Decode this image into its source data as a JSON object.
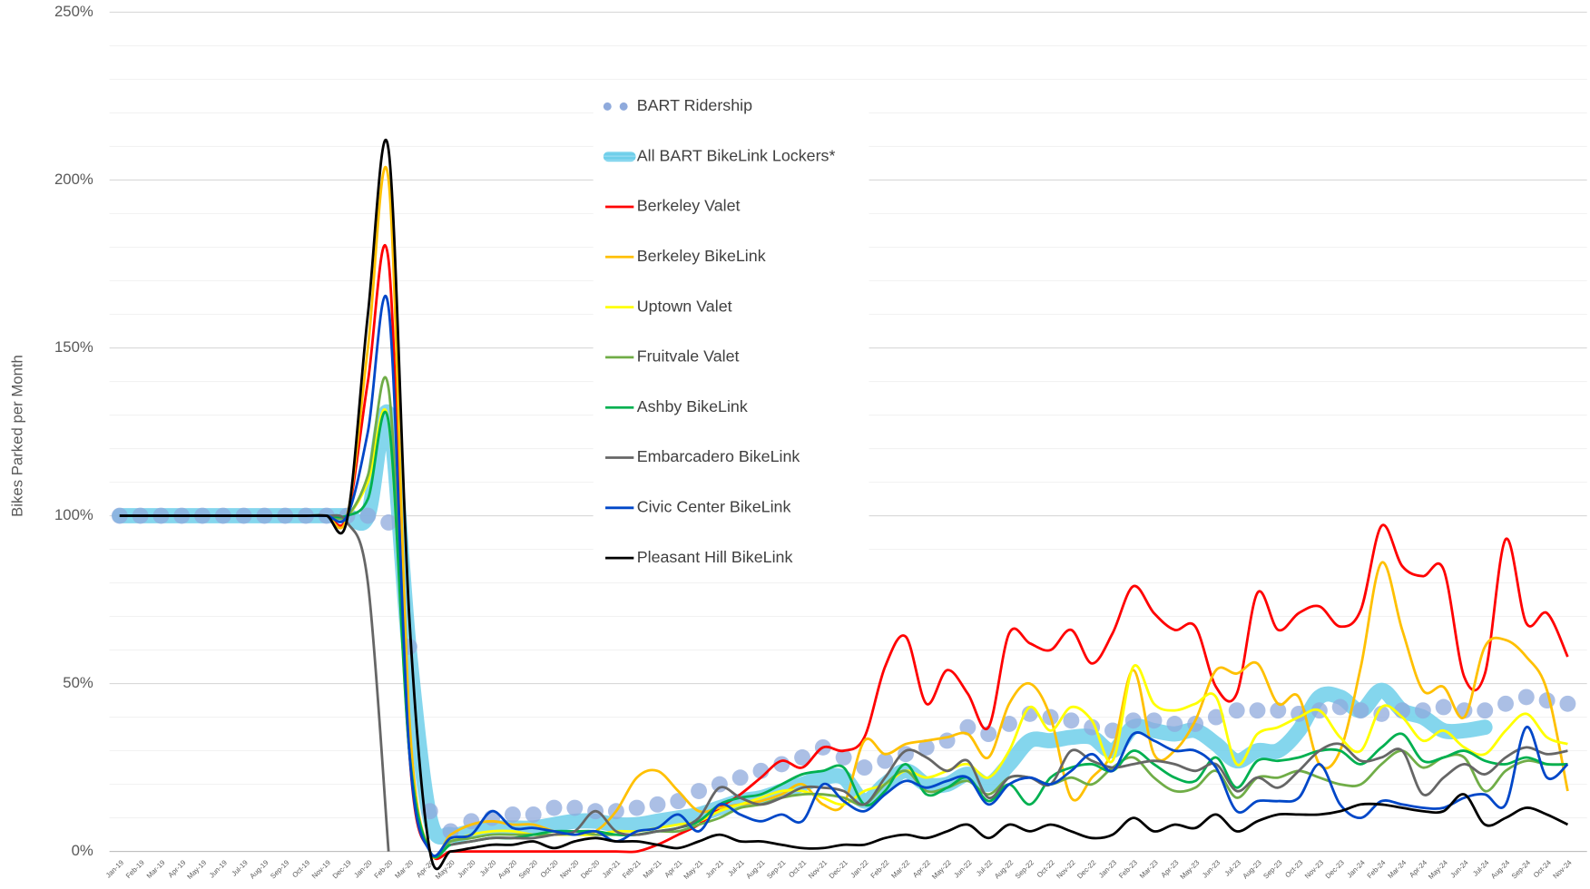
{
  "chart_data": {
    "type": "line",
    "y_axis_label": "Bikes Parked per Month",
    "categories": [
      "Jan-19",
      "Feb-19",
      "Mar-19",
      "Apr-19",
      "May-19",
      "Jun-19",
      "Jul-19",
      "Aug-19",
      "Sep-19",
      "Oct-19",
      "Nov-19",
      "Dec-19",
      "Jan-20",
      "Feb-20",
      "Mar-20",
      "Apr-20",
      "May-20",
      "Jun-20",
      "Jul-20",
      "Aug-20",
      "Sep-20",
      "Oct-20",
      "Nov-20",
      "Dec-20",
      "Jan-21",
      "Feb-21",
      "Mar-21",
      "Apr-21",
      "May-21",
      "Jun-21",
      "Jul-21",
      "Aug-21",
      "Sep-21",
      "Oct-21",
      "Nov-21",
      "Dec-21",
      "Jan-22",
      "Feb-22",
      "Mar-22",
      "Apr-22",
      "May-22",
      "Jun-22",
      "Jul-22",
      "Aug-22",
      "Sep-22",
      "Oct-22",
      "Nov-22",
      "Dec-22",
      "Jan-23",
      "Feb-23",
      "Mar-23",
      "Apr-23",
      "May-23",
      "Jun-23",
      "Jul-23",
      "Aug-23",
      "Sep-23",
      "Oct-23",
      "Nov-23",
      "Dec-23",
      "Jan-24",
      "Feb-24",
      "Mar-24",
      "Apr-24",
      "May-24",
      "Jun-24",
      "Jul-24",
      "Aug-24",
      "Sep-24",
      "Oct-24",
      "Nov-24"
    ],
    "ylim": [
      0,
      250
    ],
    "yticks": [
      {
        "value": 0,
        "label": "0%"
      },
      {
        "value": 50,
        "label": "50%"
      },
      {
        "value": 100,
        "label": "100%"
      },
      {
        "value": 150,
        "label": "150%"
      },
      {
        "value": 200,
        "label": "200%"
      },
      {
        "value": 250,
        "label": "250%"
      }
    ],
    "minor_yticks": [
      10,
      20,
      30,
      40,
      60,
      70,
      80,
      90,
      110,
      120,
      130,
      140,
      160,
      170,
      180,
      190,
      210,
      220,
      230,
      240
    ],
    "grid": true,
    "legend": "top-center",
    "series": [
      {
        "name": "BART Ridership",
        "style": "dots",
        "color": "#8faadc",
        "values": [
          100,
          100,
          100,
          100,
          100,
          100,
          100,
          100,
          100,
          100,
          100,
          100,
          100,
          98,
          61,
          12,
          6,
          9,
          10,
          11,
          11,
          13,
          13,
          12,
          12,
          13,
          14,
          15,
          18,
          20,
          22,
          24,
          26,
          28,
          31,
          28,
          25,
          27,
          29,
          31,
          33,
          37,
          35,
          38,
          41,
          40,
          39,
          37,
          36,
          39,
          39,
          38,
          38,
          40,
          42,
          42,
          42,
          41,
          42,
          43,
          42,
          41,
          42,
          42,
          43,
          42,
          42,
          44,
          46,
          45,
          44
        ]
      },
      {
        "name": "All BART BikeLink Lockers*",
        "style": "band",
        "color": "#6fcfea",
        "values": [
          100,
          100,
          100,
          100,
          100,
          100,
          100,
          100,
          100,
          100,
          100,
          100,
          100,
          130,
          60,
          10,
          5,
          6,
          7,
          7,
          7,
          8,
          9,
          9,
          8,
          8,
          9,
          10,
          11,
          13,
          15,
          16,
          18,
          20,
          22,
          22,
          15,
          20,
          24,
          20,
          20,
          23,
          20,
          26,
          33,
          33,
          34,
          34,
          30,
          37,
          36,
          35,
          36,
          32,
          27,
          30,
          30,
          36,
          46,
          46,
          42,
          48,
          42,
          40,
          36,
          36,
          37,
          null,
          null,
          null,
          null
        ]
      },
      {
        "name": "Berkeley Valet",
        "color": "#ff0000",
        "values": [
          100,
          100,
          100,
          100,
          100,
          100,
          100,
          100,
          100,
          100,
          100,
          100,
          140,
          176,
          30,
          0,
          0,
          0,
          0,
          0,
          0,
          0,
          0,
          0,
          0,
          0,
          2,
          5,
          8,
          13,
          17,
          22,
          27,
          25,
          31,
          30,
          34,
          55,
          64,
          44,
          54,
          47,
          37,
          65,
          62,
          60,
          66,
          56,
          65,
          79,
          71,
          66,
          67,
          49,
          47,
          77,
          66,
          71,
          73,
          67,
          72,
          97,
          85,
          82,
          84,
          52,
          53,
          93,
          68,
          71,
          58
        ]
      },
      {
        "name": "Berkeley BikeLink",
        "color": "#ffc000",
        "values": [
          100,
          100,
          100,
          100,
          100,
          100,
          100,
          100,
          100,
          100,
          100,
          100,
          150,
          200,
          40,
          0,
          5,
          8,
          9,
          8,
          8,
          6,
          5,
          6,
          12,
          22,
          24,
          18,
          12,
          13,
          14,
          15,
          17,
          20,
          14,
          14,
          33,
          29,
          32,
          33,
          34,
          35,
          28,
          44,
          50,
          40,
          16,
          22,
          30,
          54,
          29,
          30,
          39,
          54,
          53,
          56,
          44,
          46,
          26,
          30,
          55,
          86,
          66,
          48,
          49,
          40,
          61,
          63,
          58,
          48,
          18
        ]
      },
      {
        "name": "Uptown Valet",
        "color": "#ffff00",
        "values": [
          100,
          100,
          100,
          100,
          100,
          100,
          100,
          100,
          100,
          100,
          100,
          100,
          110,
          128,
          30,
          0,
          3,
          5,
          6,
          6,
          5,
          5,
          5,
          5,
          6,
          6,
          7,
          8,
          9,
          12,
          14,
          16,
          18,
          18,
          16,
          14,
          18,
          20,
          24,
          22,
          24,
          26,
          22,
          30,
          43,
          36,
          43,
          39,
          27,
          55,
          44,
          42,
          44,
          46,
          26,
          35,
          37,
          40,
          42,
          34,
          30,
          43,
          40,
          33,
          36,
          31,
          29,
          36,
          41,
          34,
          32
        ]
      },
      {
        "name": "Fruitvale Valet",
        "color": "#70ad47",
        "values": [
          100,
          100,
          100,
          100,
          100,
          100,
          100,
          100,
          100,
          100,
          100,
          100,
          112,
          138,
          30,
          0,
          3,
          4,
          5,
          5,
          5,
          5,
          6,
          5,
          5,
          5,
          6,
          6,
          8,
          10,
          13,
          14,
          16,
          17,
          17,
          16,
          14,
          20,
          24,
          18,
          19,
          21,
          17,
          22,
          22,
          20,
          22,
          20,
          25,
          28,
          22,
          18,
          19,
          24,
          16,
          22,
          22,
          24,
          22,
          20,
          20,
          26,
          30,
          25,
          28,
          28,
          18,
          24,
          27,
          26,
          26
        ]
      },
      {
        "name": "Ashby BikeLink",
        "color": "#00b050",
        "values": [
          100,
          100,
          100,
          100,
          100,
          100,
          100,
          100,
          100,
          100,
          100,
          100,
          105,
          128,
          30,
          0,
          2,
          3,
          4,
          4,
          5,
          6,
          6,
          6,
          5,
          5,
          6,
          7,
          9,
          14,
          16,
          17,
          20,
          23,
          24,
          25,
          14,
          18,
          26,
          17,
          19,
          22,
          15,
          20,
          14,
          22,
          25,
          26,
          24,
          30,
          26,
          22,
          21,
          28,
          19,
          27,
          27,
          28,
          30,
          30,
          26,
          31,
          35,
          27,
          28,
          30,
          27,
          26,
          28,
          26,
          26
        ]
      },
      {
        "name": "Embarcadero BikeLink",
        "color": "#666666",
        "values": [
          100,
          100,
          100,
          100,
          100,
          100,
          100,
          100,
          100,
          100,
          100,
          98,
          80,
          0,
          null,
          null,
          2,
          3,
          4,
          4,
          4,
          5,
          6,
          12,
          6,
          5,
          6,
          7,
          10,
          19,
          16,
          14,
          16,
          19,
          19,
          18,
          14,
          22,
          30,
          28,
          24,
          27,
          16,
          22,
          22,
          20,
          30,
          27,
          25,
          26,
          27,
          26,
          24,
          26,
          18,
          22,
          19,
          24,
          30,
          32,
          27,
          28,
          30,
          17,
          22,
          26,
          23,
          28,
          31,
          29,
          30
        ]
      },
      {
        "name": "Civic Center BikeLink",
        "color": "#0047c8",
        "values": [
          100,
          100,
          100,
          100,
          100,
          100,
          100,
          100,
          100,
          100,
          100,
          100,
          125,
          162,
          30,
          0,
          4,
          5,
          12,
          7,
          7,
          6,
          5,
          6,
          3,
          6,
          7,
          11,
          6,
          14,
          11,
          9,
          11,
          9,
          20,
          15,
          12,
          17,
          21,
          19,
          21,
          22,
          14,
          20,
          22,
          20,
          24,
          29,
          24,
          35,
          33,
          30,
          30,
          25,
          12,
          15,
          15,
          16,
          26,
          14,
          10,
          15,
          14,
          13,
          13,
          16,
          17,
          14,
          37,
          22,
          26
        ]
      },
      {
        "name": "Pleasant Hill BikeLink",
        "color": "#000000",
        "values": [
          100,
          100,
          100,
          100,
          100,
          100,
          100,
          100,
          100,
          100,
          100,
          99,
          160,
          209,
          70,
          0,
          0,
          1,
          2,
          2,
          3,
          1,
          3,
          4,
          3,
          3,
          2,
          1,
          3,
          5,
          3,
          3,
          2,
          1,
          1,
          2,
          2,
          4,
          5,
          4,
          6,
          8,
          4,
          8,
          6,
          8,
          6,
          4,
          5,
          10,
          6,
          8,
          7,
          11,
          6,
          9,
          11,
          11,
          11,
          12,
          14,
          14,
          13,
          12,
          12,
          17,
          8,
          10,
          13,
          11,
          8
        ]
      }
    ]
  }
}
